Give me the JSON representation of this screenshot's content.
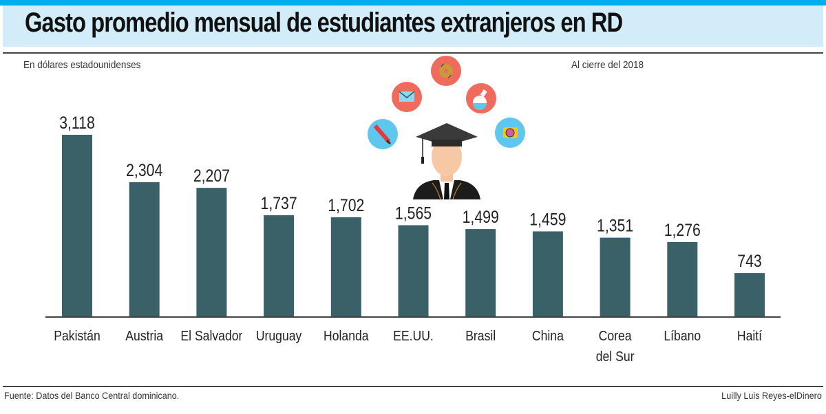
{
  "header": {
    "title": "Gasto promedio mensual de estudiantes extranjeros en RD",
    "unit_note": "En dólares estadounidenses",
    "date_note": "Al cierre del 2018"
  },
  "footer": {
    "source": "Fuente: Datos del Banco Central dominicano.",
    "credit": "Luilly Luis Reyes-elDinero"
  },
  "illustration": {
    "icons": [
      "pencil-icon",
      "envelope-icon",
      "disc-icon",
      "flask-icon",
      "camera-icon",
      "graduate-avatar-icon"
    ]
  },
  "colors": {
    "bar": "#3a6168",
    "accent": "#00aeef",
    "band": "#d3ecf9",
    "icon_red": "#ee6b5e",
    "icon_blue": "#5fc6ee"
  },
  "chart_data": {
    "type": "bar",
    "title": "Gasto promedio mensual de estudiantes extranjeros en RD",
    "subtitle": "En dólares estadounidenses",
    "annotation": "Al cierre del 2018",
    "xlabel": "",
    "ylabel": "",
    "ylim": [
      0,
      3118
    ],
    "grid": false,
    "categories": [
      "Pakistán",
      "Austria",
      "El Salvador",
      "Uruguay",
      "Holanda",
      "EE.UU.",
      "Brasil",
      "China",
      "Corea del Sur",
      "Líbano",
      "Haití"
    ],
    "category_lines": [
      [
        "Pakistán"
      ],
      [
        "Austria"
      ],
      [
        "El Salvador"
      ],
      [
        "Uruguay"
      ],
      [
        "Holanda"
      ],
      [
        "EE.UU."
      ],
      [
        "Brasil"
      ],
      [
        "China"
      ],
      [
        "Corea",
        "del Sur"
      ],
      [
        "Líbano"
      ],
      [
        "Haití"
      ]
    ],
    "values": [
      3118,
      2304,
      2207,
      1737,
      1702,
      1565,
      1499,
      1459,
      1351,
      1276,
      743
    ],
    "data_labels": [
      "3,118",
      "2,304",
      "2,207",
      "1,737",
      "1,702",
      "1,565",
      "1,499",
      "1,459",
      "1,351",
      "1,276",
      "743"
    ]
  }
}
